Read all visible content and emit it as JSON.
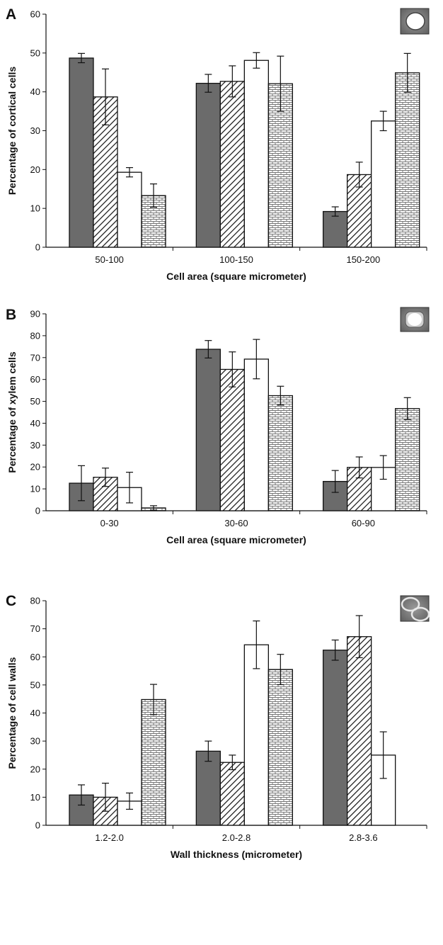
{
  "colors": {
    "dark": "#6b6b6b",
    "white": "#ffffff",
    "stroke": "#111111"
  },
  "chart_data": [
    {
      "panel": "A",
      "type": "bar",
      "ylabel": "Percentage of cortical cells",
      "xlabel": "Cell area (square micrometer)",
      "ylim": [
        0,
        60
      ],
      "ystep": 10,
      "categories": [
        "50-100",
        "100-150",
        "150-200"
      ],
      "series": [
        {
          "pattern": "dark",
          "values": [
            48.7,
            42.2,
            9.2
          ],
          "errors": [
            1.2,
            2.3,
            1.2
          ]
        },
        {
          "pattern": "hatch",
          "values": [
            38.7,
            42.7,
            18.7
          ],
          "errors": [
            7.2,
            4.0,
            3.2
          ]
        },
        {
          "pattern": "white",
          "values": [
            19.3,
            48.1,
            32.5
          ],
          "errors": [
            1.2,
            2.0,
            2.5
          ]
        },
        {
          "pattern": "brick",
          "values": [
            13.3,
            42.1,
            44.9
          ],
          "errors": [
            3.0,
            7.1,
            5.0
          ]
        }
      ]
    },
    {
      "panel": "B",
      "type": "bar",
      "ylabel": "Percentage of xylem cells",
      "xlabel": "Cell area (square micrometer)",
      "ylim": [
        0,
        90
      ],
      "ystep": 10,
      "categories": [
        "0-30",
        "30-60",
        "60-90"
      ],
      "series": [
        {
          "pattern": "dark",
          "values": [
            12.6,
            73.8,
            13.4
          ],
          "errors": [
            8.0,
            4.0,
            5.0
          ]
        },
        {
          "pattern": "hatch",
          "values": [
            15.3,
            64.6,
            19.8
          ],
          "errors": [
            4.2,
            8.0,
            4.8
          ]
        },
        {
          "pattern": "white",
          "values": [
            10.6,
            69.3,
            19.8
          ],
          "errors": [
            7.0,
            9.0,
            5.4
          ]
        },
        {
          "pattern": "brick",
          "values": [
            1.3,
            52.6,
            46.7
          ],
          "errors": [
            1.0,
            4.3,
            5.0
          ]
        }
      ]
    },
    {
      "panel": "C",
      "type": "bar",
      "ylabel": "Percentage of cell walls",
      "xlabel": "Wall thickness (micrometer)",
      "ylim": [
        0,
        80
      ],
      "ystep": 10,
      "categories": [
        "1.2-2.0",
        "2.0-2.8",
        "2.8-3.6"
      ],
      "series": [
        {
          "pattern": "dark",
          "values": [
            10.8,
            26.4,
            62.4
          ],
          "errors": [
            3.6,
            3.6,
            3.6
          ]
        },
        {
          "pattern": "hatch",
          "values": [
            10.0,
            22.4,
            67.2
          ],
          "errors": [
            5.0,
            2.6,
            7.5
          ]
        },
        {
          "pattern": "white",
          "values": [
            8.6,
            64.3,
            25.0
          ],
          "errors": [
            2.9,
            8.5,
            8.3
          ]
        },
        {
          "pattern": "brick",
          "values": [
            44.8,
            55.5,
            null
          ],
          "errors": [
            5.4,
            5.4,
            null
          ]
        }
      ]
    }
  ]
}
